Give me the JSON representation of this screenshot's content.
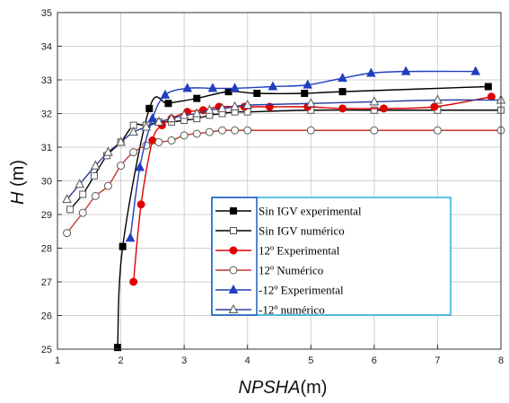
{
  "chart_data": {
    "type": "line",
    "title": "",
    "xlabel": "NPSHA",
    "xlabel_unit": "(m)",
    "ylabel": "H",
    "ylabel_unit": " (m)",
    "xlim": [
      1,
      8
    ],
    "ylim": [
      25,
      35
    ],
    "xticks": [
      1,
      2,
      3,
      4,
      5,
      6,
      7,
      8
    ],
    "yticks": [
      25,
      26,
      27,
      28,
      29,
      30,
      31,
      32,
      33,
      34,
      35
    ],
    "grid": true,
    "legend_position": "lower-center",
    "series": [
      {
        "name": "Sin IGV experimental",
        "color": "#000000",
        "marker": "square-filled",
        "x": [
          1.95,
          2.03,
          2.45,
          2.75,
          3.2,
          3.7,
          4.15,
          4.9,
          5.5,
          7.8
        ],
        "y": [
          25.05,
          28.05,
          32.15,
          32.3,
          32.45,
          32.65,
          32.6,
          32.6,
          32.65,
          32.8
        ]
      },
      {
        "name": "Sin IGV numérico",
        "color": "#000000",
        "marker": "square-open",
        "x": [
          1.2,
          1.4,
          1.58,
          1.78,
          2.0,
          2.2,
          2.4,
          2.6,
          2.8,
          3.0,
          3.2,
          3.4,
          3.6,
          3.8,
          4.0,
          5.0,
          6.0,
          7.0,
          8.0
        ],
        "y": [
          29.15,
          29.6,
          30.15,
          30.75,
          31.15,
          31.65,
          31.65,
          31.75,
          31.75,
          31.8,
          31.85,
          31.95,
          32.0,
          32.05,
          32.05,
          32.1,
          32.1,
          32.1,
          32.1
        ]
      },
      {
        "name": "12º Experimental",
        "color": "#e00000",
        "marker": "circle-filled",
        "x": [
          2.2,
          2.32,
          2.5,
          2.65,
          2.8,
          3.05,
          3.3,
          3.55,
          3.95,
          4.35,
          4.95,
          5.5,
          6.15,
          6.95,
          7.85
        ],
        "y": [
          27.0,
          29.3,
          31.2,
          31.65,
          31.85,
          32.05,
          32.1,
          32.2,
          32.2,
          32.2,
          32.2,
          32.15,
          32.15,
          32.2,
          32.5
        ]
      },
      {
        "name": "12º Numérico",
        "color": "#c0392b",
        "marker": "circle-open",
        "x": [
          1.15,
          1.4,
          1.6,
          1.8,
          2.0,
          2.2,
          2.4,
          2.6,
          2.8,
          3.0,
          3.2,
          3.4,
          3.6,
          3.8,
          4.0,
          5.0,
          6.0,
          7.0,
          8.0
        ],
        "y": [
          28.45,
          29.05,
          29.55,
          29.85,
          30.45,
          30.85,
          31.05,
          31.15,
          31.2,
          31.35,
          31.4,
          31.45,
          31.5,
          31.5,
          31.5,
          31.5,
          31.5,
          31.5,
          31.5
        ]
      },
      {
        "name": "-12º Experimental",
        "color": "#1f3fbf",
        "marker": "triangle-filled",
        "x": [
          2.15,
          2.3,
          2.5,
          2.7,
          3.05,
          3.45,
          3.8,
          4.4,
          4.95,
          5.5,
          5.95,
          6.5,
          7.6
        ],
        "y": [
          28.3,
          30.4,
          31.85,
          32.55,
          32.75,
          32.75,
          32.75,
          32.8,
          32.85,
          33.05,
          33.2,
          33.25,
          33.25
        ]
      },
      {
        "name": "-12º numérico",
        "color": "#2a3f9f",
        "marker": "triangle-open",
        "x": [
          1.15,
          1.35,
          1.6,
          1.8,
          2.0,
          2.2,
          2.4,
          2.6,
          2.8,
          3.0,
          3.2,
          3.4,
          3.6,
          3.8,
          4.0,
          5.0,
          6.0,
          7.0,
          8.0
        ],
        "y": [
          29.45,
          29.9,
          30.45,
          30.85,
          31.15,
          31.45,
          31.6,
          31.75,
          31.85,
          31.95,
          32.0,
          32.1,
          32.15,
          32.2,
          32.25,
          32.3,
          32.35,
          32.4,
          32.4
        ]
      }
    ]
  }
}
